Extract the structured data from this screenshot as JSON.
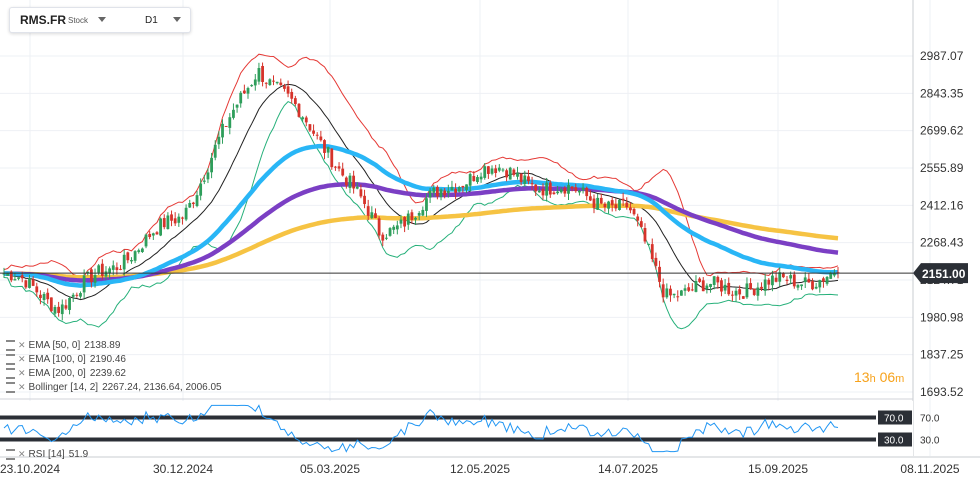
{
  "header": {
    "symbol": "RMS.FR",
    "type": "Stock",
    "timeframe": "D1"
  },
  "price_axis_labels": [
    "2987.07",
    "2843.35",
    "2699.62",
    "2555.89",
    "2412.16",
    "2268.43",
    "2124.71",
    "1980.98",
    "1837.25",
    "1693.52"
  ],
  "current_price_label": "2151.00",
  "date_labels": [
    "23.10.2024",
    "30.12.2024",
    "05.03.2025",
    "12.05.2025",
    "14.07.2025",
    "15.09.2025",
    "08.11.2025"
  ],
  "rsi_levels": {
    "upper": "70.0",
    "lower": "30.0",
    "upper_axis": "70.0",
    "lower_axis": "30.0"
  },
  "timer": {
    "hours": "13",
    "h": "h",
    "minutes": "06",
    "m": "m"
  },
  "legend": [
    {
      "name": "EMA",
      "params": "[50,  0]",
      "values": "2138.89"
    },
    {
      "name": "EMA",
      "params": "[100,  0]",
      "values": "2190.46"
    },
    {
      "name": "EMA",
      "params": "[200,  0]",
      "values": "2239.62"
    },
    {
      "name": "Bollinger",
      "params": "[14,  2]",
      "values": "2267.24,   2136.64,   2006.05"
    },
    {
      "name": "RSI",
      "params": "[14]",
      "values": "51.9"
    }
  ],
  "colors": {
    "bull": "#2e9e5b",
    "bear": "#d6332b",
    "ema50": "#29b6f6",
    "ema100": "#7b3fc4",
    "ema200": "#f6c343",
    "boll_upper": "#e53935",
    "boll_mid": "#222222",
    "boll_lower": "#26b07a",
    "rsi": "#2196f3",
    "timer": "#f7a21b"
  },
  "chart_data": {
    "type": "candlestick",
    "timeframe": "D1",
    "y_range": [
      1693.52,
      2987.07
    ],
    "rsi_range": [
      0,
      100
    ],
    "last_price": 2151.0,
    "key_points": [
      {
        "date": "23.10.2024",
        "close": 2150
      },
      {
        "date": "05.11.2024",
        "close": 2030
      },
      {
        "date": "30.12.2024",
        "close": 2380
      },
      {
        "date": "10.02.2025",
        "close": 2950
      },
      {
        "date": "05.03.2025",
        "close": 2620
      },
      {
        "date": "25.03.2025",
        "close": 2300
      },
      {
        "date": "12.05.2025",
        "close": 2560
      },
      {
        "date": "14.07.2025",
        "close": 2400
      },
      {
        "date": "01.08.2025",
        "close": 2080
      },
      {
        "date": "15.09.2025",
        "close": 2110
      },
      {
        "date": "08.10.2025",
        "close": 2151
      }
    ],
    "indicators": {
      "ema_50": 2138.89,
      "ema_100": 2190.46,
      "ema_200": 2239.62,
      "bollinger": {
        "period": 14,
        "dev": 2,
        "upper": 2267.24,
        "middle": 2136.64,
        "lower": 2006.05
      },
      "rsi": {
        "period": 14,
        "value": 51.9,
        "upper": 70.0,
        "lower": 30.0
      }
    }
  }
}
